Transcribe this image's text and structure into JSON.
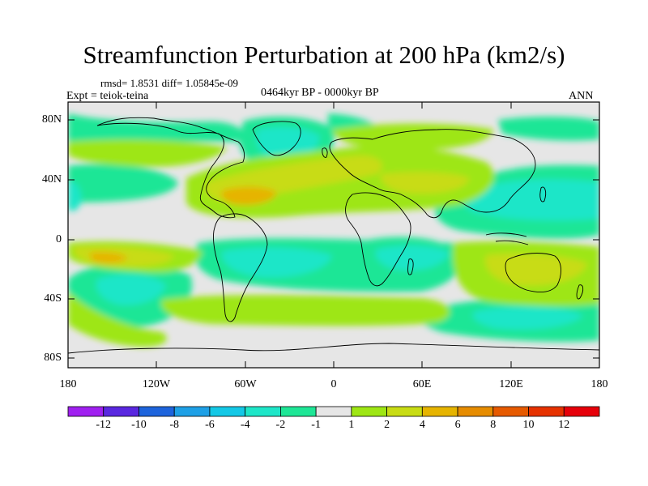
{
  "title": "Streamfunction Perturbation at 200 hPa (km2/s)",
  "stats": "rmsd= 1.8531 diff= 1.05845e-09",
  "experiment": "Expt = teiok-teina",
  "period": "0464kyr BP - 0000kyr BP",
  "season": "ANN",
  "lat_labels": [
    "80N",
    "40N",
    "0",
    "40S",
    "80S"
  ],
  "lon_labels": [
    "180",
    "120W",
    "60W",
    "0",
    "60E",
    "120E",
    "180"
  ],
  "colorbar": {
    "labels": [
      "-12",
      "-10",
      "-8",
      "-6",
      "-4",
      "-2",
      "-1",
      "1",
      "2",
      "4",
      "6",
      "8",
      "10",
      "12"
    ],
    "colors": [
      "#a020f0",
      "#5a28e0",
      "#1e64dc",
      "#1ea0e6",
      "#14c8e6",
      "#1ee6c8",
      "#1ee696",
      "#e6e6e6",
      "#9ee614",
      "#c8dc14",
      "#e6b400",
      "#e68c00",
      "#e65a00",
      "#e63200",
      "#e6000a"
    ]
  },
  "colors": {
    "background": "#e6e6e6",
    "neg_weak": "#1ee696",
    "neg_mid": "#1ee6c8",
    "neg_strong": "#14c8e6",
    "pos_weak": "#9ee614",
    "pos_mid": "#c8dc14",
    "pos_strong": "#e6b400",
    "coast": "#000000"
  }
}
